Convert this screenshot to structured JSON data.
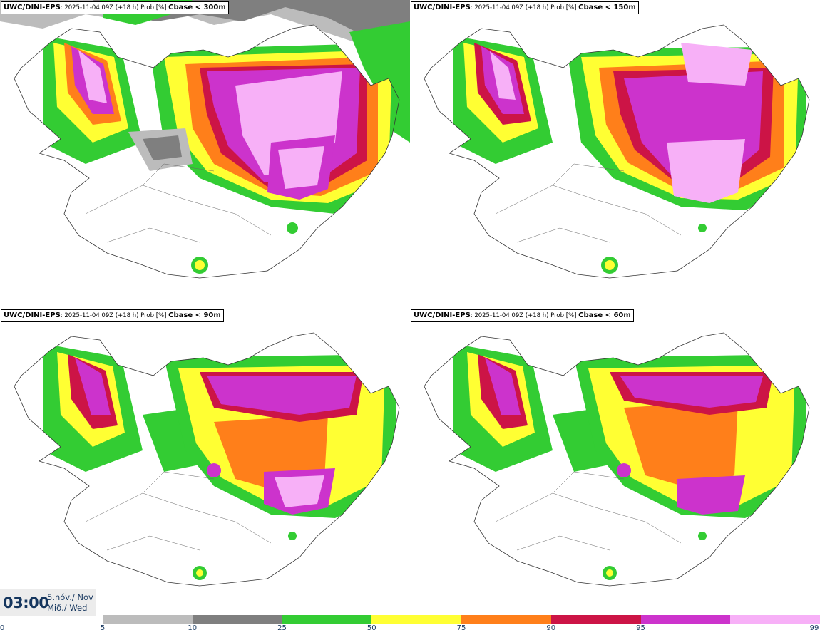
{
  "panels": [
    {
      "model": "UWC/DINI-EPS",
      "meta": ": 2025-11-04 09Z (+18 h) Prob [%] ",
      "field": "Cbase < 300m"
    },
    {
      "model": "UWC/DINI-EPS",
      "meta": ": 2025-11-04 09Z (+18 h) Prob [%] ",
      "field": "Cbase < 150m"
    },
    {
      "model": "UWC/DINI-EPS",
      "meta": ": 2025-11-04 09Z (+18 h) Prob [%] ",
      "field": "Cbase < 90m"
    },
    {
      "model": "UWC/DINI-EPS",
      "meta": ": 2025-11-04 09Z (+18 h) Prob [%] ",
      "field": "Cbase < 60m"
    }
  ],
  "clock": {
    "time": "03:00",
    "date_line": "5.nóv./ Nov",
    "day_line": "Mið./ Wed"
  },
  "legend": {
    "ticks": [
      "0",
      "5",
      "10",
      "25",
      "50",
      "75",
      "90",
      "95",
      "99"
    ],
    "colors": [
      "#bcbcbc",
      "#7f7f7f",
      "#33cc33",
      "#ffff33",
      "#ff7f1a",
      "#cc1446",
      "#cc33cc",
      "#f7b0f7"
    ]
  },
  "colors": {
    "coastline": "#333333",
    "label_text": "#15365e"
  }
}
